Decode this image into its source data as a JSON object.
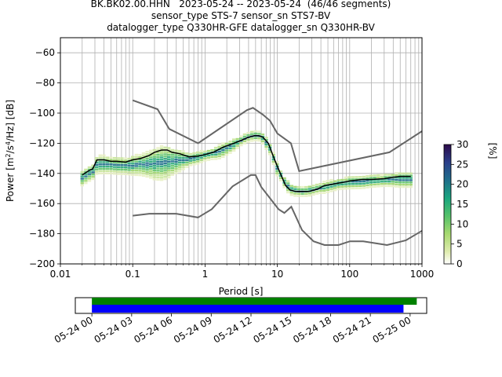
{
  "title_lines": [
    "BK.BK02.00.HHN   2023-05-24 -- 2023-05-24  (46/46 segments)",
    "sensor_type STS-7 sensor_sn STS7-BV",
    "datalogger_type Q330HR-GFE datalogger_sn Q330HR-BV"
  ],
  "chart_data": {
    "type": "ppsd",
    "xlabel": "Period [s]",
    "xscale": "log",
    "xlim": [
      0.01,
      1000
    ],
    "x_ticks": [
      {
        "value": 0.01,
        "label": "0.01"
      },
      {
        "value": 0.1,
        "label": "0.1"
      },
      {
        "value": 1,
        "label": "1"
      },
      {
        "value": 10,
        "label": "10"
      },
      {
        "value": 100,
        "label": "100"
      },
      {
        "value": 1000,
        "label": "1000"
      }
    ],
    "ylabel_base": "Power [m",
    "ylabel_sup1": "2",
    "ylabel_mid": "/s",
    "ylabel_sup2": "4",
    "ylabel_tail": "/Hz] [dB]",
    "ylim": [
      -200,
      -50
    ],
    "y_ticks": [
      -60,
      -80,
      -100,
      -120,
      -140,
      -160,
      -180,
      -200
    ],
    "grid": true,
    "colorbar": {
      "label": "[%]",
      "range": [
        0,
        30
      ],
      "ticks": [
        0,
        5,
        10,
        15,
        20,
        25,
        30
      ],
      "colormap": "pqlx"
    },
    "noise_model_high": {
      "name": "NHNM",
      "x": [
        0.1,
        0.22,
        0.32,
        0.8,
        3.8,
        4.6,
        6.3,
        7.9,
        10,
        15.4,
        20,
        354.8,
        1000
      ],
      "y": [
        -91.5,
        -97.4,
        -110.5,
        -120,
        -98,
        -96.5,
        -101,
        -105,
        -113.5,
        -120,
        -138.5,
        -126,
        -112
      ]
    },
    "noise_model_low": {
      "name": "NLNM",
      "x": [
        0.1,
        0.17,
        0.4,
        0.8,
        1.24,
        2.4,
        4.3,
        5,
        6,
        10.4,
        12.5,
        15.6,
        21.9,
        31.6,
        45,
        70,
        101,
        154,
        328,
        600,
        1000
      ],
      "y": [
        -168,
        -166.7,
        -166.7,
        -169.2,
        -163.7,
        -148.6,
        -141.1,
        -141.1,
        -149,
        -163.8,
        -166.2,
        -162.1,
        -177.5,
        -185,
        -187.5,
        -187.5,
        -185,
        -185,
        -187.5,
        -184.4,
        -178
      ]
    },
    "mean_curve": {
      "name": "mean",
      "x": [
        0.02,
        0.025,
        0.028,
        0.032,
        0.04,
        0.05,
        0.06,
        0.08,
        0.1,
        0.13,
        0.17,
        0.2,
        0.25,
        0.3,
        0.35,
        0.45,
        0.6,
        0.8,
        1.0,
        1.3,
        1.8,
        2.5,
        3.2,
        4.0,
        4.8,
        5.5,
        6.3,
        7.5,
        9,
        11,
        13,
        15,
        18,
        22,
        27,
        35,
        45,
        60,
        80,
        100,
        150,
        200,
        300,
        400,
        500,
        600,
        700
      ],
      "y": [
        -141,
        -138,
        -137,
        -131,
        -131,
        -132,
        -132,
        -132.5,
        -131,
        -130,
        -128,
        -126,
        -124.5,
        -124.5,
        -126,
        -127,
        -129,
        -128.5,
        -127.5,
        -126,
        -122.5,
        -120,
        -118,
        -116,
        -115,
        -115,
        -116,
        -120,
        -130,
        -140,
        -148,
        -151,
        -152,
        -152,
        -152,
        -150.5,
        -148,
        -147,
        -146,
        -145,
        -144,
        -144,
        -143.5,
        -142.5,
        -142,
        -142,
        -142
      ]
    },
    "ppsd_mode": {
      "name": "mode",
      "x": [
        0.02,
        0.025,
        0.028,
        0.032,
        0.04,
        0.05,
        0.08,
        0.1,
        0.2,
        0.3,
        0.5,
        0.8,
        1.0,
        1.5,
        2.5,
        3.5,
        4.5,
        5.5,
        6.5,
        8,
        10,
        13,
        16,
        22,
        30,
        45,
        70,
        100,
        200,
        400,
        700
      ],
      "y": [
        -143,
        -140,
        -139,
        -134,
        -134,
        -134.5,
        -135,
        -134.5,
        -133.5,
        -132.5,
        -131,
        -129.5,
        -128,
        -126,
        -121,
        -117,
        -115,
        -115,
        -117,
        -124,
        -137,
        -147,
        -151,
        -152,
        -151,
        -149,
        -147,
        -146,
        -145,
        -144,
        -144
      ]
    },
    "time_coverage": {
      "tick_labels": [
        "05-24 00",
        "05-24 03",
        "05-24 06",
        "05-24 09",
        "05-24 12",
        "05-24 15",
        "05-24 18",
        "05-24 21",
        "05-25 00"
      ],
      "range_hours": [
        -1.25,
        25.25
      ],
      "green_bar_hours": [
        0,
        24.5
      ],
      "blue_bar_hours": [
        0,
        23.5
      ],
      "green_color": "#008000",
      "blue_color": "#0000ff"
    },
    "colors": {
      "noise_models": "#666666",
      "mean": "#000000",
      "grid": "#b0b0b0"
    }
  }
}
